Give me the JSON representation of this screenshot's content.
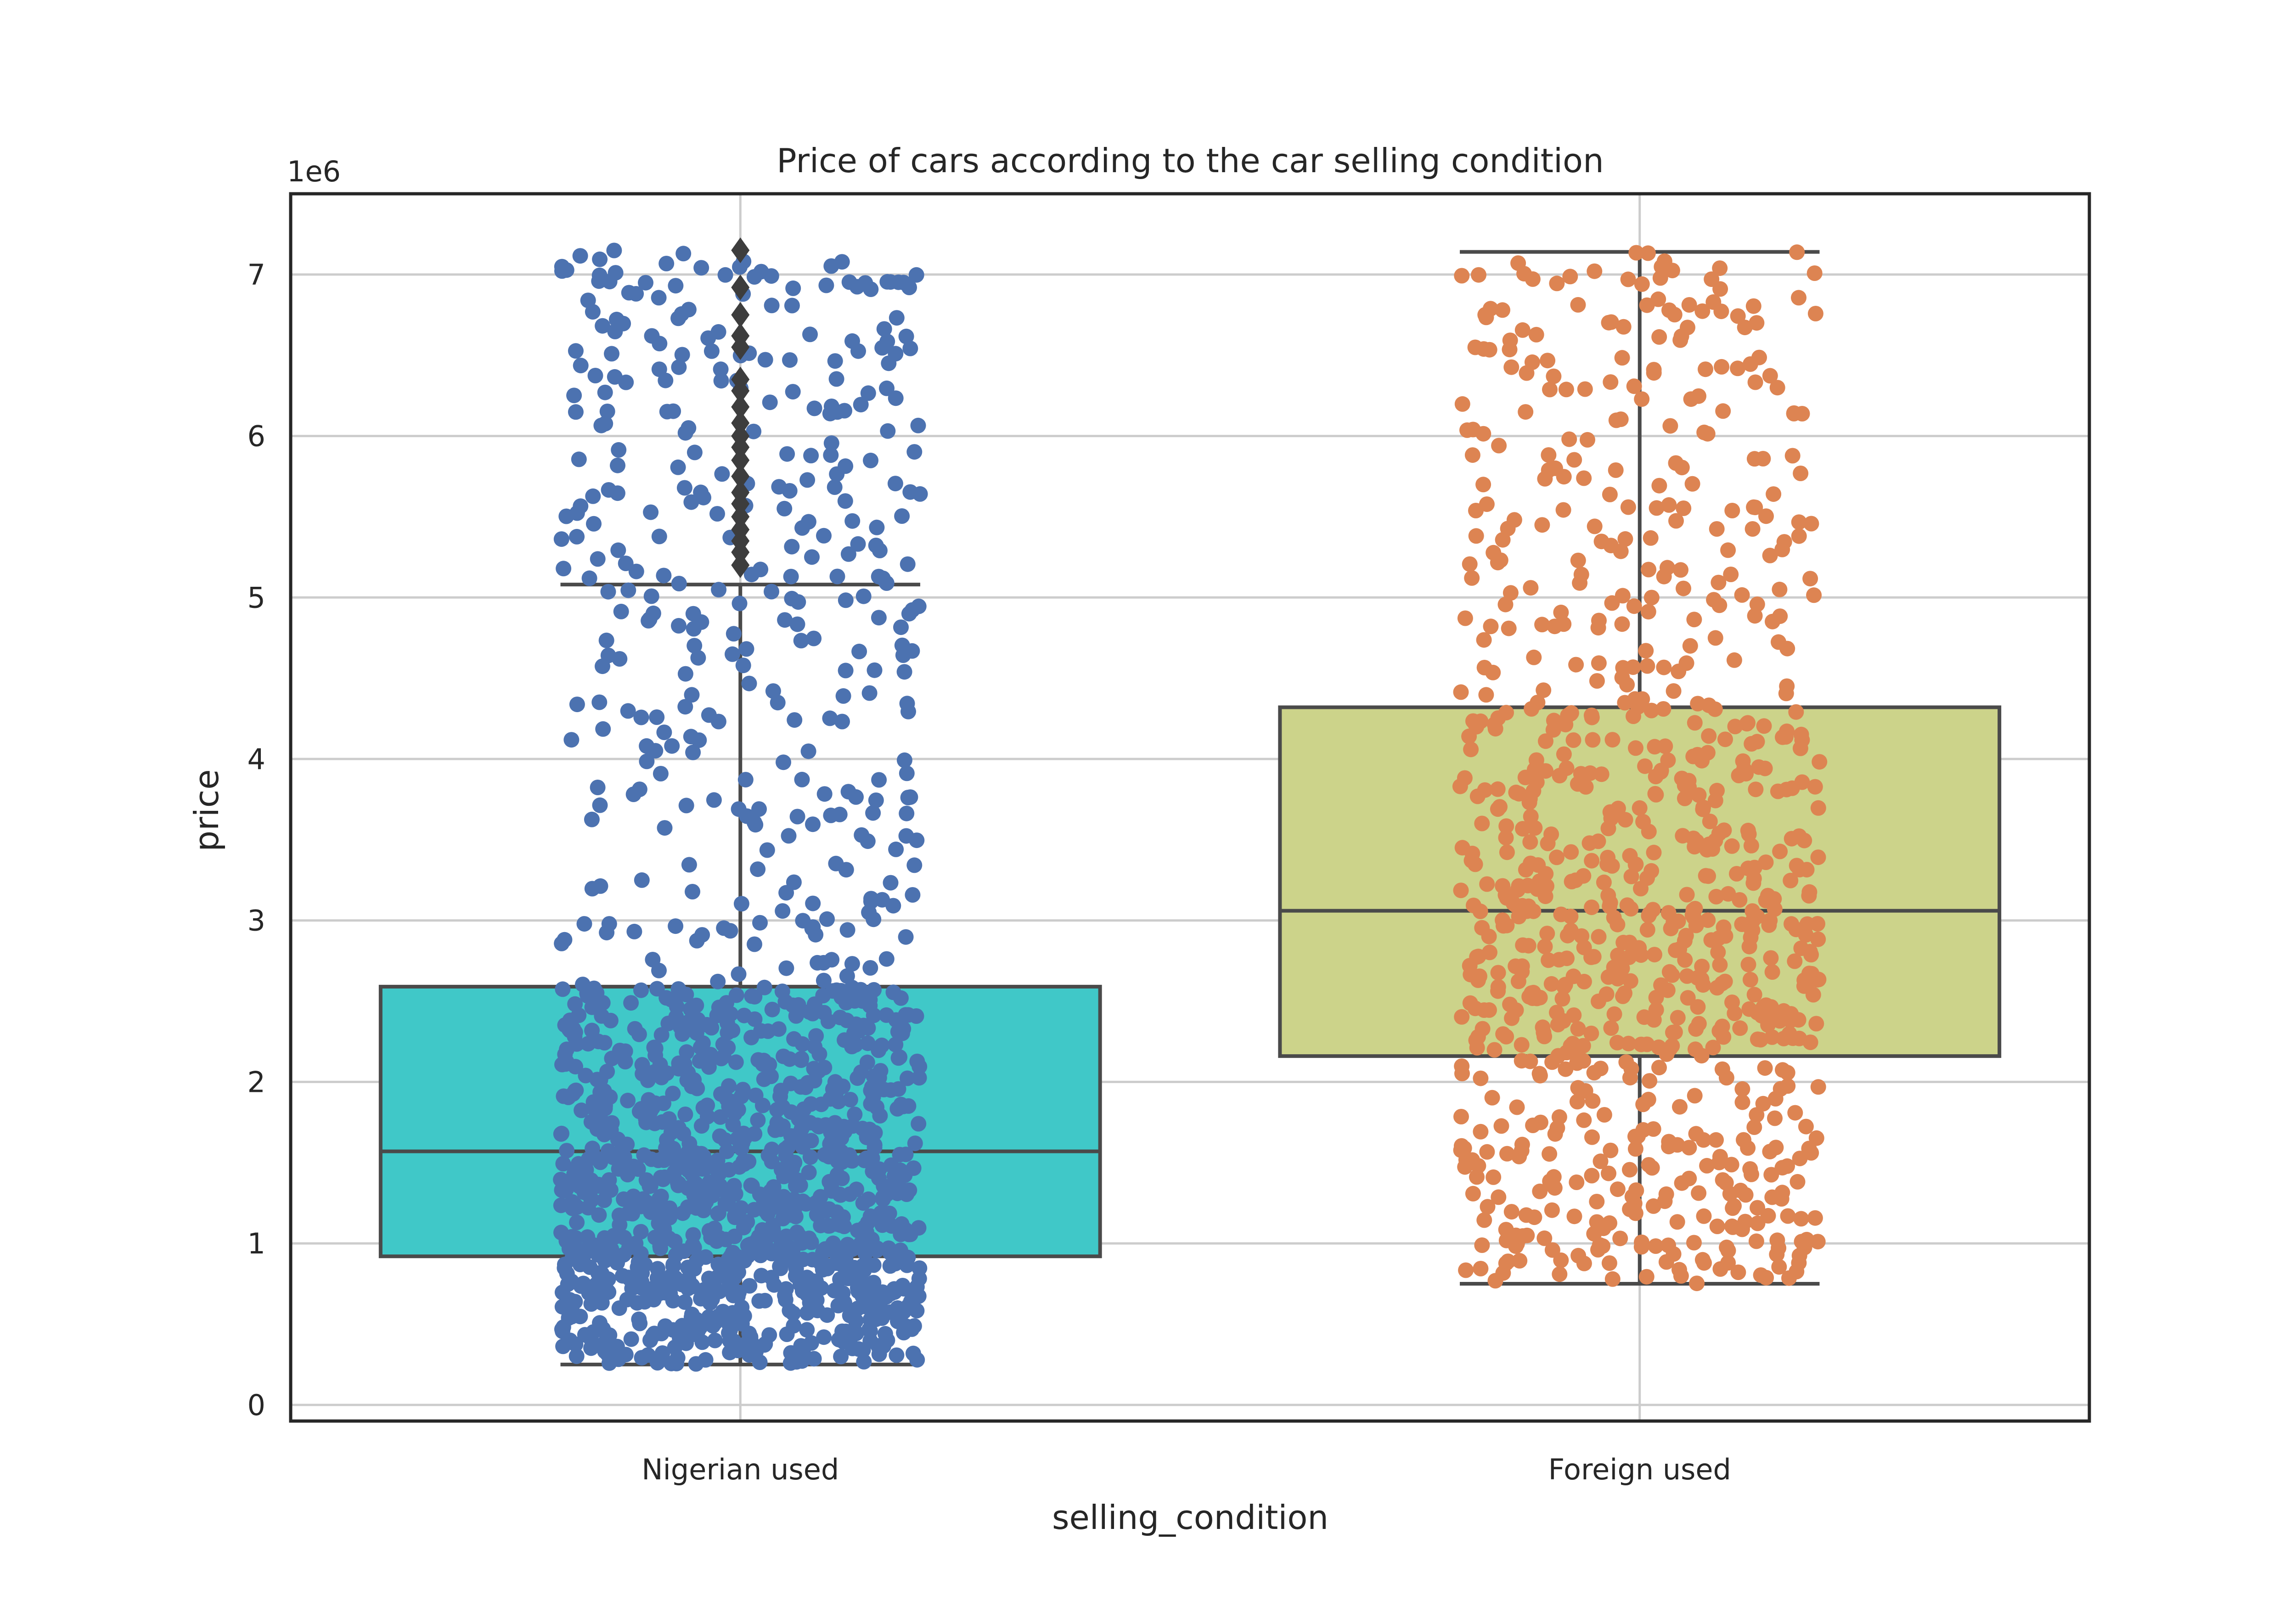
{
  "chart_data": {
    "type": "box",
    "title": "Price of cars according to the car selling condition",
    "xlabel": "selling_condition",
    "ylabel": "price",
    "y_offset_label": "1e6",
    "ylim": [
      -0.1,
      7.5
    ],
    "yticks": [
      0,
      1,
      2,
      3,
      4,
      5,
      6,
      7
    ],
    "grid": true,
    "categories": [
      "Nigerian used",
      "Foreign used"
    ],
    "boxes": [
      {
        "name": "Nigerian used",
        "color": "#40c8c8",
        "point_color": "#4c72b0",
        "whisker_low": 0.25,
        "q1": 0.92,
        "median": 1.57,
        "q3": 2.59,
        "whisker_high": 5.08,
        "outliers": [
          5.2,
          5.28,
          5.35,
          5.42,
          5.5,
          5.58,
          5.65,
          5.75,
          5.85,
          5.93,
          6.0,
          6.08,
          6.18,
          6.28,
          6.35,
          6.55,
          6.62,
          6.75,
          6.92,
          7.15
        ]
      },
      {
        "name": "Foreign used",
        "color": "#ccd38a",
        "point_color": "#dd8452",
        "whisker_low": 0.75,
        "q1": 2.16,
        "median": 3.06,
        "q3": 4.32,
        "whisker_high": 7.14,
        "outliers": []
      }
    ]
  }
}
